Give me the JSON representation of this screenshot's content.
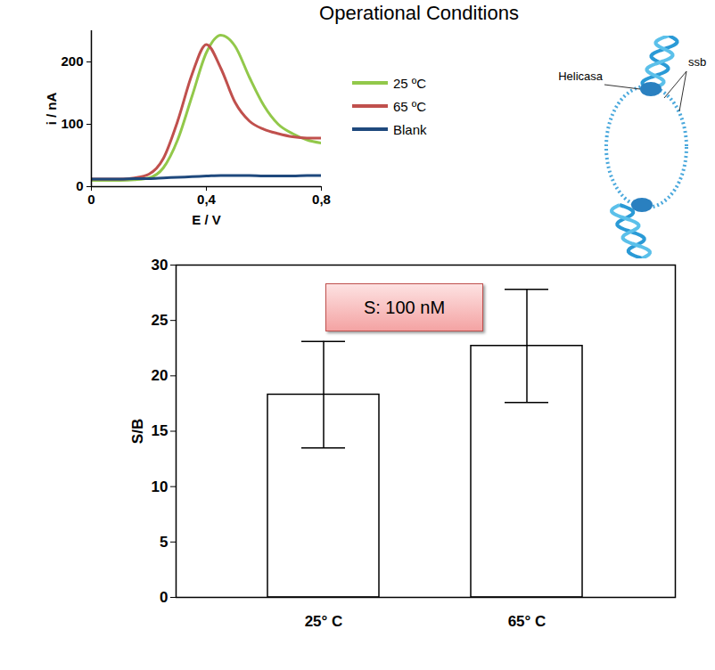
{
  "chart_data": [
    {
      "type": "line",
      "title": "Operational Conditions",
      "x_label": "E / V",
      "y_label": "i / nA",
      "x": [
        0,
        0.05,
        0.1,
        0.15,
        0.2,
        0.25,
        0.3,
        0.35,
        0.4,
        0.45,
        0.5,
        0.55,
        0.6,
        0.65,
        0.7,
        0.75,
        0.8
      ],
      "xlim": [
        0,
        0.8
      ],
      "xticks": [
        0,
        {
          "value": 0.4,
          "label": "0,4"
        },
        {
          "value": 0.8,
          "label": "0,8"
        }
      ],
      "ylim": [
        0,
        250
      ],
      "yticks": [
        0,
        100,
        200
      ],
      "grid": false,
      "legend": "right",
      "series": [
        {
          "name": "25 ºC",
          "color": "#92c84a",
          "values": [
            10,
            10,
            10,
            11,
            14,
            30,
            75,
            145,
            215,
            243,
            225,
            175,
            130,
            100,
            85,
            75,
            70
          ]
        },
        {
          "name": "65 ºC",
          "color": "#c0504d",
          "values": [
            12,
            12,
            12,
            14,
            20,
            45,
            105,
            180,
            228,
            190,
            135,
            105,
            92,
            85,
            80,
            78,
            78
          ]
        },
        {
          "name": "Blank",
          "color": "#1f497d",
          "values": [
            12,
            12,
            12,
            13,
            13,
            14,
            15,
            16,
            17,
            18,
            18,
            18,
            17,
            17,
            17,
            18,
            18
          ]
        }
      ]
    },
    {
      "type": "bar",
      "y_label": "S/B",
      "categories": [
        "25° C",
        "65° C"
      ],
      "values": [
        18.3,
        22.7
      ],
      "errors": [
        4.8,
        5.1
      ],
      "color": "#ffffff",
      "ylim": [
        0,
        30
      ],
      "yticks": [
        0,
        5,
        10,
        15,
        20,
        25,
        30
      ],
      "grid": false,
      "annotations": [
        "S: 100 nM"
      ]
    }
  ],
  "illustration": {
    "labels": [
      "Helicasa",
      "ssb"
    ]
  }
}
